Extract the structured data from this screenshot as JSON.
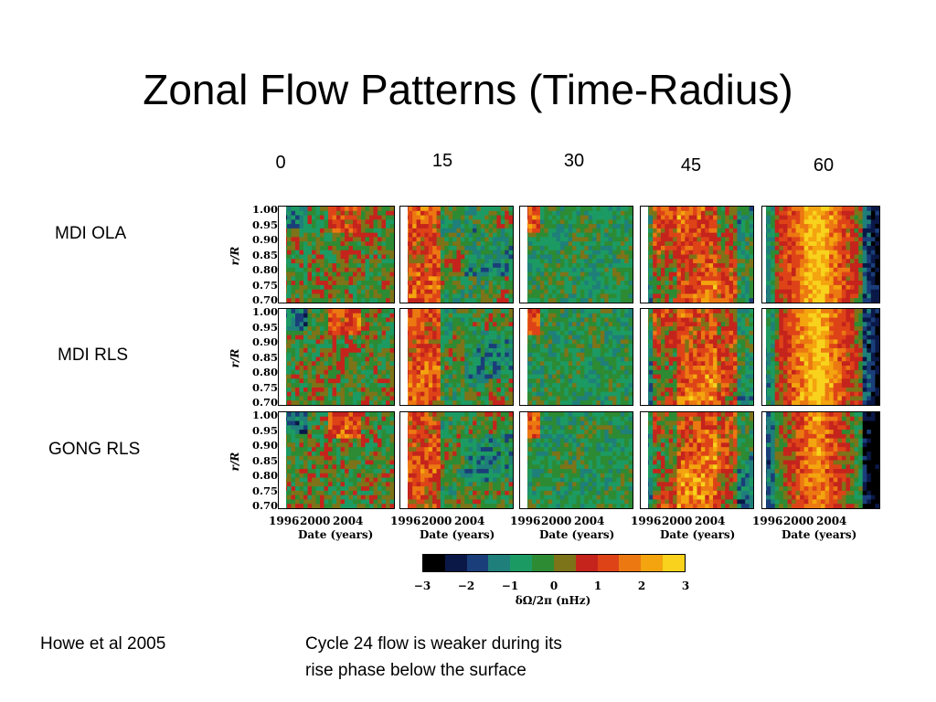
{
  "title": "Zonal Flow Patterns (Time-Radius)",
  "latitudes": [
    "0",
    "15",
    "30",
    "45",
    "60"
  ],
  "rows": [
    "MDI OLA",
    "MDI RLS",
    "GONG RLS"
  ],
  "y_axis_label": "r/R",
  "y_ticks": [
    "1.00",
    "0.95",
    "0.90",
    "0.85",
    "0.80",
    "0.75",
    "0.70"
  ],
  "x_ticks": [
    "1996",
    "2000",
    "2004"
  ],
  "x_axis_label": "Date (years)",
  "colorbar": {
    "label": "δΩ/2π (nHz)",
    "ticks": [
      "−3",
      "−2",
      "−1",
      "0",
      "1",
      "2",
      "3"
    ],
    "colors": [
      "#000000",
      "#0a1848",
      "#1a3e7a",
      "#1f7f7a",
      "#1c9a63",
      "#2c8b33",
      "#7d7318",
      "#c4241c",
      "#de4318",
      "#ec7812",
      "#f3a40e",
      "#f8d21c"
    ]
  },
  "citation": "Howe et al 2005",
  "note_lines": [
    "Cycle 24 flow is weaker during its",
    "rise phase below the surface"
  ],
  "chart_data": {
    "type": "heatmap",
    "title": "Zonal Flow Patterns (Time-Radius)",
    "panels_columns": [
      "0",
      "15",
      "30",
      "45",
      "60"
    ],
    "panels_rows": [
      "MDI OLA",
      "MDI RLS",
      "GONG RLS"
    ],
    "xlabel": "Date (years)",
    "xticks": [
      1996,
      2000,
      2004
    ],
    "ylabel": "r/R",
    "ylim": [
      0.7,
      1.0
    ],
    "yticks": [
      1.0,
      0.95,
      0.9,
      0.85,
      0.8,
      0.75,
      0.7
    ],
    "colorbar_label": "δΩ/2π (nHz)",
    "colorbar_range": [
      -3,
      3
    ],
    "colorbar_ticks": [
      -3,
      -2,
      -1,
      0,
      1,
      2,
      3
    ]
  }
}
